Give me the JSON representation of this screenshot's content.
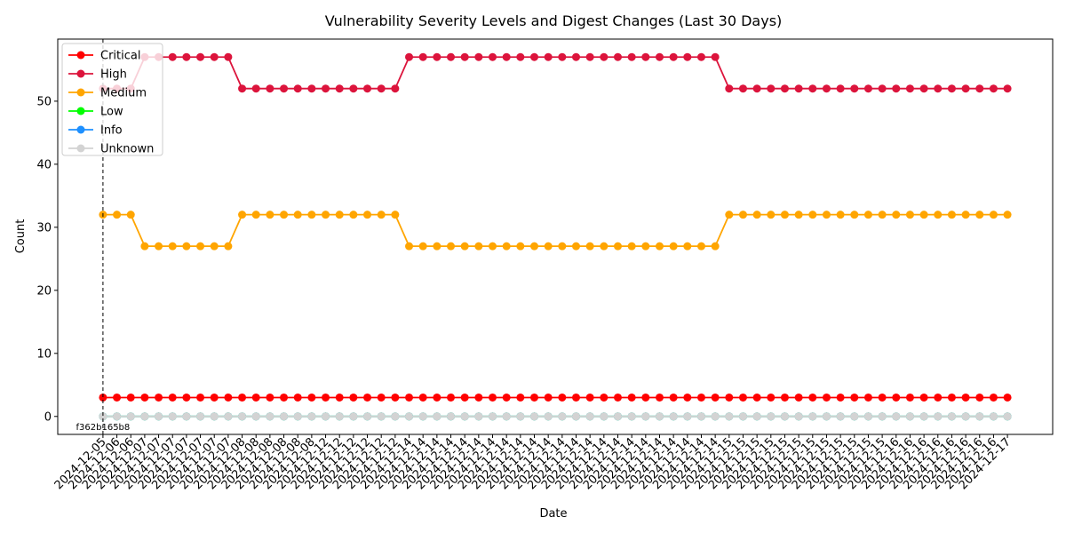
{
  "chart_data": {
    "type": "line",
    "title": "Vulnerability Severity Levels and Digest Changes (Last 30 Days)",
    "xlabel": "Date",
    "ylabel": "Count",
    "ylim": [
      -2.85,
      59.85
    ],
    "yticks": [
      0,
      10,
      20,
      30,
      40,
      50
    ],
    "grid": false,
    "legend_position": "top-left",
    "x": [
      "2024-12-05",
      "2024-12-06",
      "2024-12-06",
      "2024-12-07",
      "2024-12-07",
      "2024-12-07",
      "2024-12-07",
      "2024-12-07",
      "2024-12-07",
      "2024-12-07",
      "2024-12-08",
      "2024-12-08",
      "2024-12-08",
      "2024-12-08",
      "2024-12-08",
      "2024-12-08",
      "2024-12-12",
      "2024-12-12",
      "2024-12-12",
      "2024-12-12",
      "2024-12-12",
      "2024-12-12",
      "2024-12-14",
      "2024-12-14",
      "2024-12-14",
      "2024-12-14",
      "2024-12-14",
      "2024-12-14",
      "2024-12-14",
      "2024-12-14",
      "2024-12-14",
      "2024-12-14",
      "2024-12-14",
      "2024-12-14",
      "2024-12-14",
      "2024-12-14",
      "2024-12-14",
      "2024-12-14",
      "2024-12-14",
      "2024-12-14",
      "2024-12-14",
      "2024-12-14",
      "2024-12-14",
      "2024-12-14",
      "2024-12-14",
      "2024-12-15",
      "2024-12-15",
      "2024-12-15",
      "2024-12-15",
      "2024-12-15",
      "2024-12-15",
      "2024-12-15",
      "2024-12-15",
      "2024-12-15",
      "2024-12-15",
      "2024-12-15",
      "2024-12-15",
      "2024-12-16",
      "2024-12-16",
      "2024-12-16",
      "2024-12-16",
      "2024-12-16",
      "2024-12-16",
      "2024-12-16",
      "2024-12-16",
      "2024-12-17"
    ],
    "series": [
      {
        "name": "Critical",
        "color": "#ff0000",
        "values": [
          3,
          3,
          3,
          3,
          3,
          3,
          3,
          3,
          3,
          3,
          3,
          3,
          3,
          3,
          3,
          3,
          3,
          3,
          3,
          3,
          3,
          3,
          3,
          3,
          3,
          3,
          3,
          3,
          3,
          3,
          3,
          3,
          3,
          3,
          3,
          3,
          3,
          3,
          3,
          3,
          3,
          3,
          3,
          3,
          3,
          3,
          3,
          3,
          3,
          3,
          3,
          3,
          3,
          3,
          3,
          3,
          3,
          3,
          3,
          3,
          3,
          3,
          3,
          3,
          3,
          3
        ]
      },
      {
        "name": "High",
        "color": "#dc143c",
        "values": [
          52,
          52,
          52,
          57,
          57,
          57,
          57,
          57,
          57,
          57,
          52,
          52,
          52,
          52,
          52,
          52,
          52,
          52,
          52,
          52,
          52,
          52,
          57,
          57,
          57,
          57,
          57,
          57,
          57,
          57,
          57,
          57,
          57,
          57,
          57,
          57,
          57,
          57,
          57,
          57,
          57,
          57,
          57,
          57,
          57,
          52,
          52,
          52,
          52,
          52,
          52,
          52,
          52,
          52,
          52,
          52,
          52,
          52,
          52,
          52,
          52,
          52,
          52,
          52,
          52,
          52
        ]
      },
      {
        "name": "Medium",
        "color": "#ffa500",
        "values": [
          32,
          32,
          32,
          27,
          27,
          27,
          27,
          27,
          27,
          27,
          32,
          32,
          32,
          32,
          32,
          32,
          32,
          32,
          32,
          32,
          32,
          32,
          27,
          27,
          27,
          27,
          27,
          27,
          27,
          27,
          27,
          27,
          27,
          27,
          27,
          27,
          27,
          27,
          27,
          27,
          27,
          27,
          27,
          27,
          27,
          32,
          32,
          32,
          32,
          32,
          32,
          32,
          32,
          32,
          32,
          32,
          32,
          32,
          32,
          32,
          32,
          32,
          32,
          32,
          32,
          32
        ]
      },
      {
        "name": "Low",
        "color": "#00ff00",
        "values": [
          0,
          0,
          0,
          0,
          0,
          0,
          0,
          0,
          0,
          0,
          0,
          0,
          0,
          0,
          0,
          0,
          0,
          0,
          0,
          0,
          0,
          0,
          0,
          0,
          0,
          0,
          0,
          0,
          0,
          0,
          0,
          0,
          0,
          0,
          0,
          0,
          0,
          0,
          0,
          0,
          0,
          0,
          0,
          0,
          0,
          0,
          0,
          0,
          0,
          0,
          0,
          0,
          0,
          0,
          0,
          0,
          0,
          0,
          0,
          0,
          0,
          0,
          0,
          0,
          0,
          0
        ]
      },
      {
        "name": "Info",
        "color": "#1e90ff",
        "values": [
          0,
          0,
          0,
          0,
          0,
          0,
          0,
          0,
          0,
          0,
          0,
          0,
          0,
          0,
          0,
          0,
          0,
          0,
          0,
          0,
          0,
          0,
          0,
          0,
          0,
          0,
          0,
          0,
          0,
          0,
          0,
          0,
          0,
          0,
          0,
          0,
          0,
          0,
          0,
          0,
          0,
          0,
          0,
          0,
          0,
          0,
          0,
          0,
          0,
          0,
          0,
          0,
          0,
          0,
          0,
          0,
          0,
          0,
          0,
          0,
          0,
          0,
          0,
          0,
          0,
          0
        ]
      },
      {
        "name": "Unknown",
        "color": "#d3d3d3",
        "values": [
          0,
          0,
          0,
          0,
          0,
          0,
          0,
          0,
          0,
          0,
          0,
          0,
          0,
          0,
          0,
          0,
          0,
          0,
          0,
          0,
          0,
          0,
          0,
          0,
          0,
          0,
          0,
          0,
          0,
          0,
          0,
          0,
          0,
          0,
          0,
          0,
          0,
          0,
          0,
          0,
          0,
          0,
          0,
          0,
          0,
          0,
          0,
          0,
          0,
          0,
          0,
          0,
          0,
          0,
          0,
          0,
          0,
          0,
          0,
          0,
          0,
          0,
          0,
          0,
          0,
          0
        ]
      }
    ],
    "annotations": [
      {
        "text": "f362b165b8",
        "x_index": 0,
        "style": "dashed-vertical-line"
      }
    ]
  }
}
